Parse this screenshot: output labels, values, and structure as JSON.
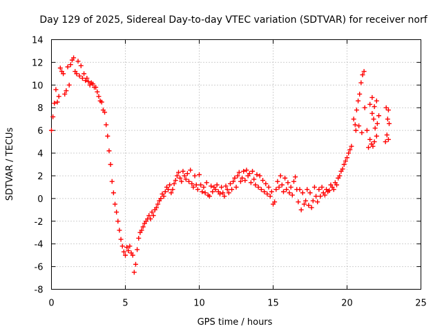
{
  "chart_data": {
    "type": "scatter",
    "title": "Day 129 of 2025, Sidereal Day-to-day VTEC variation (SDTVAR) for receiver norf",
    "xlabel": "GPS time / hours",
    "ylabel": "SDTVAR / TECUs",
    "xlim": [
      0,
      25
    ],
    "ylim": [
      -8,
      14
    ],
    "xticks": [
      0,
      5,
      10,
      15,
      20,
      25
    ],
    "yticks": [
      -8,
      -6,
      -4,
      -2,
      0,
      2,
      4,
      6,
      8,
      10,
      12,
      14
    ],
    "grid": true,
    "marker": "plus",
    "color": "#ff0000",
    "series": [
      {
        "name": "SDTVAR",
        "points": [
          [
            0.0,
            6.0
          ],
          [
            0.1,
            7.2
          ],
          [
            0.2,
            8.4
          ],
          [
            0.3,
            9.6
          ],
          [
            0.4,
            8.5
          ],
          [
            0.5,
            9.0
          ],
          [
            0.6,
            11.5
          ],
          [
            0.7,
            11.2
          ],
          [
            0.8,
            11.0
          ],
          [
            0.9,
            9.2
          ],
          [
            1.0,
            9.5
          ],
          [
            1.1,
            11.6
          ],
          [
            1.2,
            10.0
          ],
          [
            1.3,
            11.8
          ],
          [
            1.4,
            12.2
          ],
          [
            1.5,
            12.4
          ],
          [
            1.6,
            11.2
          ],
          [
            1.7,
            11.0
          ],
          [
            1.8,
            12.1
          ],
          [
            1.9,
            10.8
          ],
          [
            2.0,
            11.7
          ],
          [
            2.1,
            10.6
          ],
          [
            2.2,
            11.0
          ],
          [
            2.3,
            10.4
          ],
          [
            2.4,
            10.6
          ],
          [
            2.5,
            10.3
          ],
          [
            2.6,
            10.0
          ],
          [
            2.7,
            10.2
          ],
          [
            2.8,
            10.1
          ],
          [
            2.9,
            9.8
          ],
          [
            3.0,
            9.8
          ],
          [
            3.1,
            9.4
          ],
          [
            3.2,
            9.0
          ],
          [
            3.3,
            8.6
          ],
          [
            3.4,
            8.5
          ],
          [
            3.5,
            7.8
          ],
          [
            3.6,
            7.6
          ],
          [
            3.7,
            6.5
          ],
          [
            3.8,
            5.5
          ],
          [
            3.9,
            4.2
          ],
          [
            4.0,
            3.0
          ],
          [
            4.1,
            1.5
          ],
          [
            4.2,
            0.5
          ],
          [
            4.3,
            -0.5
          ],
          [
            4.4,
            -1.2
          ],
          [
            4.5,
            -2.0
          ],
          [
            4.6,
            -2.8
          ],
          [
            4.7,
            -3.6
          ],
          [
            4.8,
            -4.2
          ],
          [
            4.9,
            -4.7
          ],
          [
            5.0,
            -5.0
          ],
          [
            5.1,
            -4.3
          ],
          [
            5.2,
            -4.6
          ],
          [
            5.3,
            -4.2
          ],
          [
            5.4,
            -4.8
          ],
          [
            5.5,
            -5.0
          ],
          [
            5.6,
            -6.5
          ],
          [
            5.7,
            -5.8
          ],
          [
            5.8,
            -4.5
          ],
          [
            5.9,
            -3.5
          ],
          [
            6.0,
            -3.0
          ],
          [
            6.1,
            -2.8
          ],
          [
            6.2,
            -2.5
          ],
          [
            6.3,
            -2.2
          ],
          [
            6.4,
            -2.0
          ],
          [
            6.5,
            -1.8
          ],
          [
            6.6,
            -1.5
          ],
          [
            6.7,
            -1.8
          ],
          [
            6.8,
            -1.2
          ],
          [
            6.9,
            -1.5
          ],
          [
            7.0,
            -1.0
          ],
          [
            7.1,
            -0.8
          ],
          [
            7.2,
            -0.5
          ],
          [
            7.3,
            -0.2
          ],
          [
            7.4,
            0.0
          ],
          [
            7.5,
            0.4
          ],
          [
            7.6,
            0.2
          ],
          [
            7.7,
            0.6
          ],
          [
            7.8,
            1.0
          ],
          [
            7.9,
            0.8
          ],
          [
            8.0,
            1.2
          ],
          [
            8.1,
            0.5
          ],
          [
            8.2,
            0.8
          ],
          [
            8.3,
            1.3
          ],
          [
            8.4,
            1.6
          ],
          [
            8.5,
            2.0
          ],
          [
            8.6,
            2.3
          ],
          [
            8.7,
            1.8
          ],
          [
            8.8,
            1.5
          ],
          [
            8.9,
            2.4
          ],
          [
            9.0,
            2.0
          ],
          [
            9.1,
            1.7
          ],
          [
            9.2,
            2.2
          ],
          [
            9.3,
            1.5
          ],
          [
            9.4,
            2.5
          ],
          [
            9.5,
            1.3
          ],
          [
            9.6,
            1.0
          ],
          [
            9.7,
            2.0
          ],
          [
            9.8,
            1.2
          ],
          [
            9.9,
            0.8
          ],
          [
            10.0,
            2.1
          ],
          [
            10.1,
            1.2
          ],
          [
            10.2,
            0.6
          ],
          [
            10.3,
            1.0
          ],
          [
            10.4,
            0.5
          ],
          [
            10.5,
            1.4
          ],
          [
            10.6,
            0.3
          ],
          [
            10.7,
            0.2
          ],
          [
            10.8,
            1.1
          ],
          [
            10.9,
            0.6
          ],
          [
            11.0,
            1.0
          ],
          [
            11.1,
            0.8
          ],
          [
            11.2,
            1.2
          ],
          [
            11.3,
            0.6
          ],
          [
            11.4,
            0.4
          ],
          [
            11.5,
            1.0
          ],
          [
            11.6,
            0.5
          ],
          [
            11.7,
            0.2
          ],
          [
            11.8,
            1.1
          ],
          [
            11.9,
            0.8
          ],
          [
            12.0,
            0.5
          ],
          [
            12.1,
            1.3
          ],
          [
            12.2,
            0.8
          ],
          [
            12.3,
            1.5
          ],
          [
            12.4,
            1.8
          ],
          [
            12.5,
            1.0
          ],
          [
            12.6,
            2.0
          ],
          [
            12.7,
            2.3
          ],
          [
            12.8,
            1.5
          ],
          [
            12.9,
            1.8
          ],
          [
            13.0,
            2.4
          ],
          [
            13.1,
            1.6
          ],
          [
            13.2,
            2.5
          ],
          [
            13.3,
            2.0
          ],
          [
            13.4,
            2.2
          ],
          [
            13.5,
            1.4
          ],
          [
            13.6,
            2.4
          ],
          [
            13.7,
            1.7
          ],
          [
            13.8,
            1.2
          ],
          [
            13.9,
            2.1
          ],
          [
            14.0,
            1.0
          ],
          [
            14.1,
            2.0
          ],
          [
            14.2,
            0.8
          ],
          [
            14.3,
            1.6
          ],
          [
            14.4,
            0.6
          ],
          [
            14.5,
            1.3
          ],
          [
            14.6,
            0.4
          ],
          [
            14.7,
            1.0
          ],
          [
            14.8,
            0.2
          ],
          [
            14.9,
            0.6
          ],
          [
            15.0,
            -0.5
          ],
          [
            15.1,
            -0.3
          ],
          [
            15.2,
            0.8
          ],
          [
            15.3,
            1.5
          ],
          [
            15.4,
            1.0
          ],
          [
            15.5,
            2.0
          ],
          [
            15.6,
            1.2
          ],
          [
            15.7,
            0.6
          ],
          [
            15.8,
            1.8
          ],
          [
            15.9,
            0.8
          ],
          [
            16.0,
            1.4
          ],
          [
            16.1,
            0.5
          ],
          [
            16.2,
            1.0
          ],
          [
            16.3,
            0.3
          ],
          [
            16.4,
            1.5
          ],
          [
            16.5,
            1.9
          ],
          [
            16.6,
            0.8
          ],
          [
            16.7,
            -0.3
          ],
          [
            16.8,
            0.8
          ],
          [
            16.9,
            -1.0
          ],
          [
            17.0,
            0.5
          ],
          [
            17.1,
            -0.5
          ],
          [
            17.2,
            -0.2
          ],
          [
            17.3,
            0.8
          ],
          [
            17.4,
            -0.6
          ],
          [
            17.5,
            0.5
          ],
          [
            17.6,
            -0.8
          ],
          [
            17.7,
            -0.2
          ],
          [
            17.8,
            1.0
          ],
          [
            17.9,
            0.2
          ],
          [
            18.0,
            -0.3
          ],
          [
            18.1,
            0.8
          ],
          [
            18.2,
            0.2
          ],
          [
            18.3,
            1.0
          ],
          [
            18.4,
            0.5
          ],
          [
            18.5,
            0.3
          ],
          [
            18.6,
            0.8
          ],
          [
            18.7,
            0.6
          ],
          [
            18.8,
            0.7
          ],
          [
            18.9,
            1.2
          ],
          [
            19.0,
            1.0
          ],
          [
            19.1,
            0.8
          ],
          [
            19.2,
            1.4
          ],
          [
            19.3,
            1.2
          ],
          [
            19.4,
            1.8
          ],
          [
            19.5,
            2.0
          ],
          [
            19.6,
            2.4
          ],
          [
            19.7,
            2.6
          ],
          [
            19.8,
            3.0
          ],
          [
            19.9,
            3.3
          ],
          [
            20.0,
            3.6
          ],
          [
            20.1,
            4.0
          ],
          [
            20.2,
            4.3
          ],
          [
            20.3,
            4.6
          ],
          [
            20.45,
            7.0
          ],
          [
            20.55,
            6.5
          ],
          [
            20.65,
            7.8
          ],
          [
            20.75,
            8.6
          ],
          [
            20.85,
            9.2
          ],
          [
            20.95,
            10.2
          ],
          [
            21.05,
            10.9
          ],
          [
            21.15,
            11.2
          ],
          [
            20.6,
            6.0
          ],
          [
            20.8,
            6.4
          ],
          [
            21.0,
            5.8
          ],
          [
            21.2,
            8.0
          ],
          [
            21.35,
            6.0
          ],
          [
            21.45,
            4.5
          ],
          [
            21.55,
            5.2
          ],
          [
            21.65,
            4.8
          ],
          [
            21.75,
            4.6
          ],
          [
            21.85,
            5.0
          ],
          [
            22.0,
            5.5
          ],
          [
            21.7,
            7.5
          ],
          [
            21.8,
            7.0
          ],
          [
            21.9,
            6.2
          ],
          [
            22.05,
            6.6
          ],
          [
            21.55,
            8.3
          ],
          [
            21.7,
            8.9
          ],
          [
            21.85,
            8.1
          ],
          [
            22.0,
            8.6
          ],
          [
            22.15,
            7.3
          ],
          [
            22.6,
            5.0
          ],
          [
            22.7,
            5.6
          ],
          [
            22.8,
            5.2
          ],
          [
            22.75,
            7.0
          ],
          [
            22.85,
            6.6
          ],
          [
            22.65,
            8.0
          ],
          [
            22.8,
            7.8
          ]
        ]
      }
    ]
  }
}
